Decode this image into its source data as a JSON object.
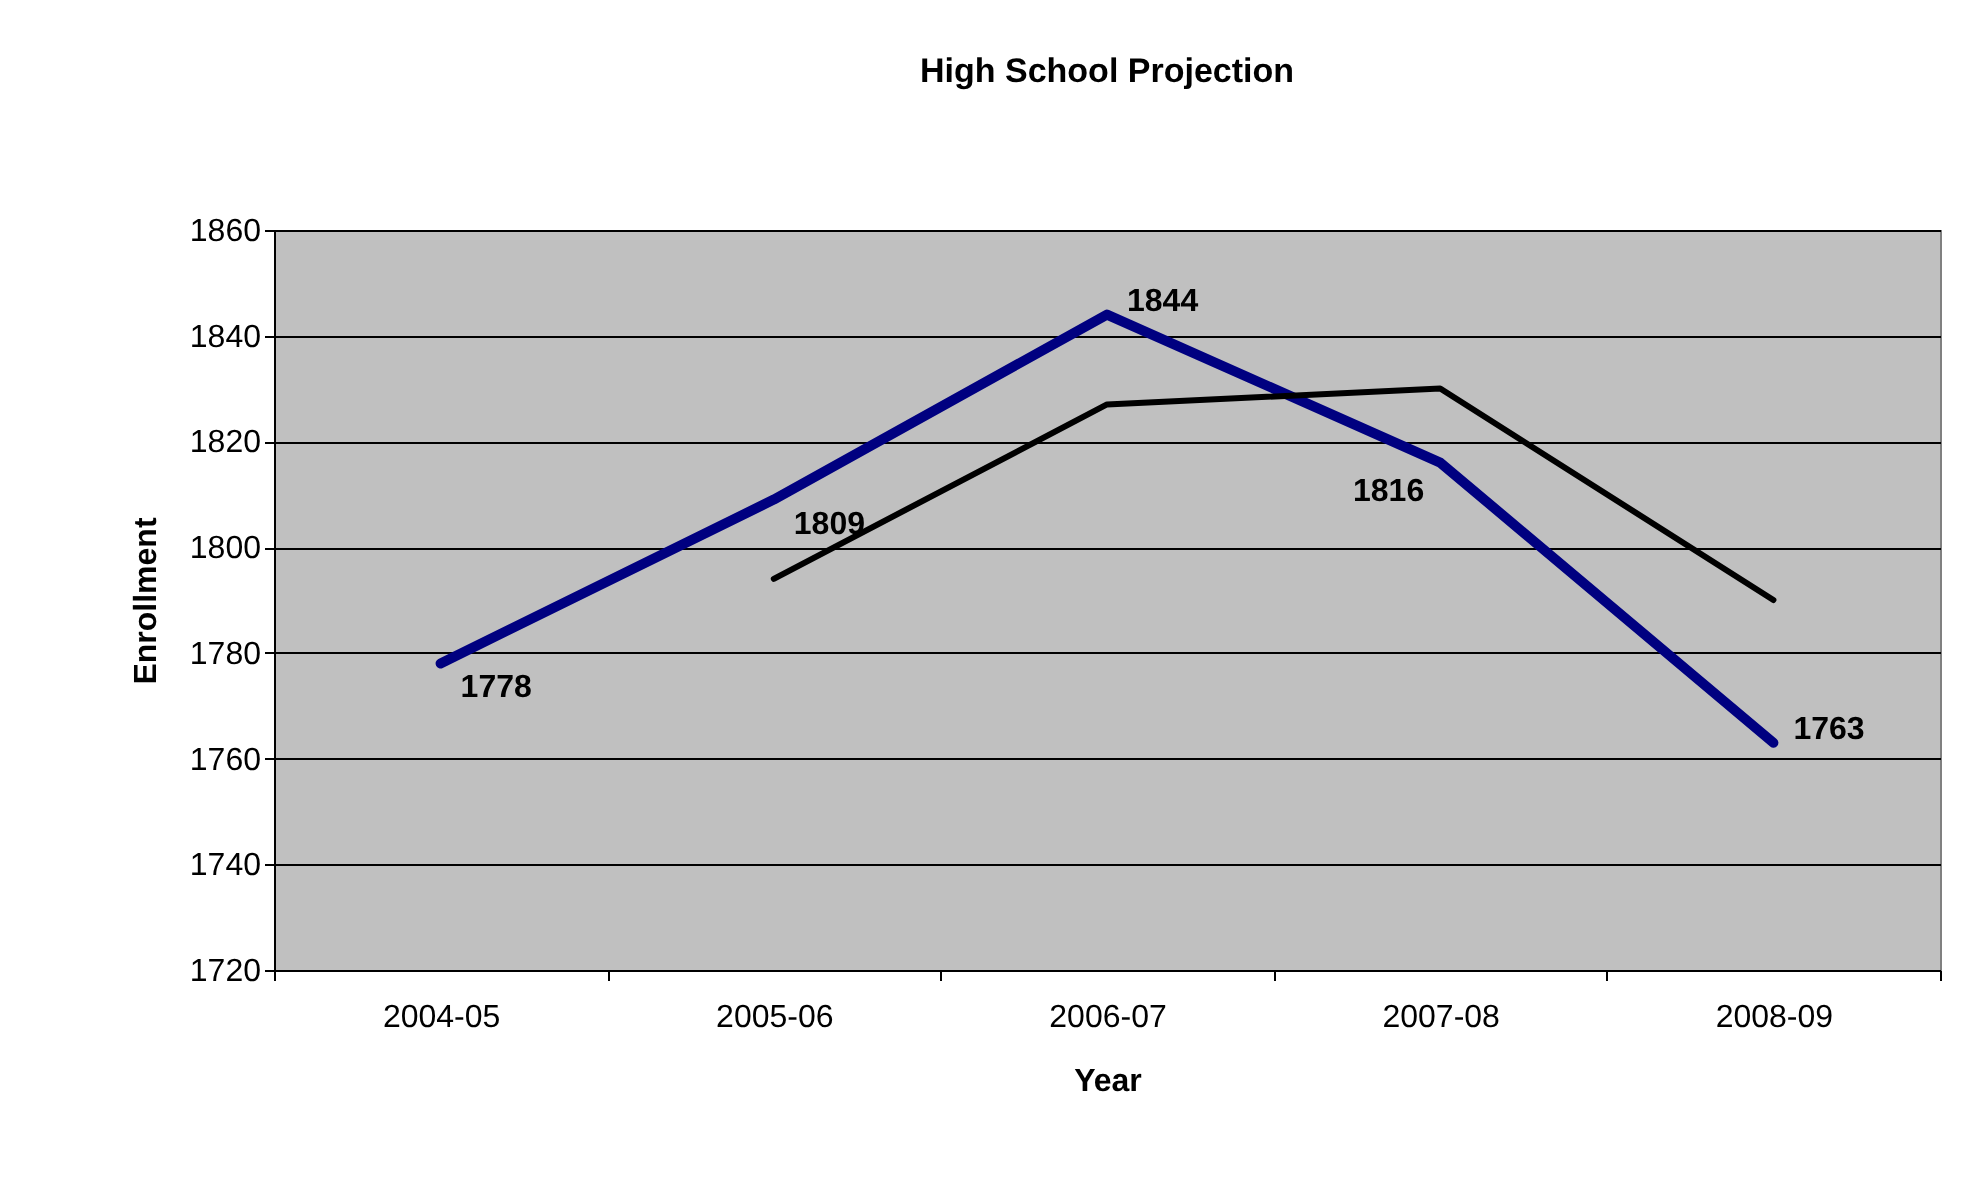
{
  "chart_data": {
    "type": "line",
    "title": "High School Projection",
    "xlabel": "Year",
    "ylabel": "Enrollment",
    "categories": [
      "2004-05",
      "2005-06",
      "2006-07",
      "2007-08",
      "2008-09"
    ],
    "series": [
      {
        "color": "#000080",
        "values": [
          1778,
          1809,
          1844,
          1816,
          1763
        ],
        "value_labels": [
          "1778",
          "1809",
          "1844",
          "1816",
          "1763"
        ]
      },
      {
        "color": "#000000",
        "values": [
          null,
          1794,
          1827,
          1830,
          1790
        ]
      }
    ],
    "ylim": [
      1720,
      1860
    ],
    "yticks": [
      1720,
      1740,
      1760,
      1780,
      1800,
      1820,
      1840,
      1860
    ],
    "grid": "y",
    "legend": false,
    "marker": "none",
    "line_style": "solid"
  }
}
